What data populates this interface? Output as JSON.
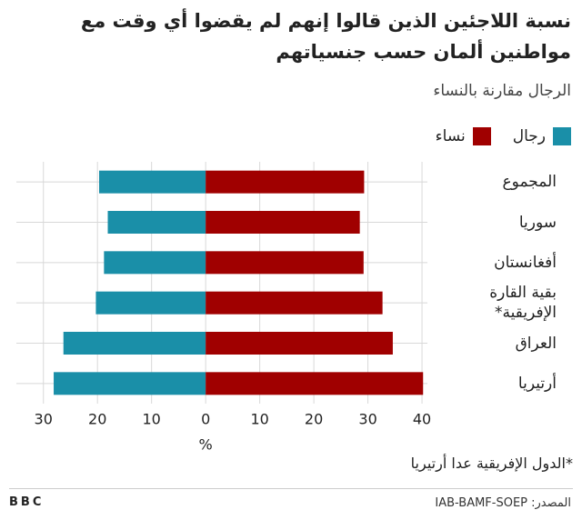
{
  "chart_data": {
    "type": "butterfly_bar",
    "title": "نسبة اللاجئين الذين قالوا إنهم لم يقضوا أي وقت مع مواطنين ألمان حسب جنسياتهم",
    "subtitle": "الرجال مقارنة بالنساء",
    "categories": [
      "المجموع",
      "سوريا",
      "أفغانستان",
      "بقية القارة الإفريقية*",
      "العراق",
      "أرتيريا"
    ],
    "series": [
      {
        "name": "رجال",
        "color": "#1a8fa8",
        "direction": "left",
        "values": [
          19.7,
          18.1,
          18.8,
          20.3,
          26.3,
          28.1
        ]
      },
      {
        "name": "نساء",
        "color": "#a00000",
        "direction": "right",
        "values": [
          29.3,
          28.5,
          29.2,
          32.7,
          34.6,
          40.2
        ]
      }
    ],
    "xlim": [
      -35,
      41
    ],
    "xticks": [
      {
        "value": -30,
        "label": "30"
      },
      {
        "value": -20,
        "label": "20"
      },
      {
        "value": -10,
        "label": "10"
      },
      0,
      10,
      20,
      30,
      40
    ],
    "xlabel": "%",
    "grid": true,
    "note": "*الدول الإفريقية عدا أرتيريا",
    "source": "المصدر: IAB-BAMF-SOEP",
    "logo": "BBC"
  }
}
